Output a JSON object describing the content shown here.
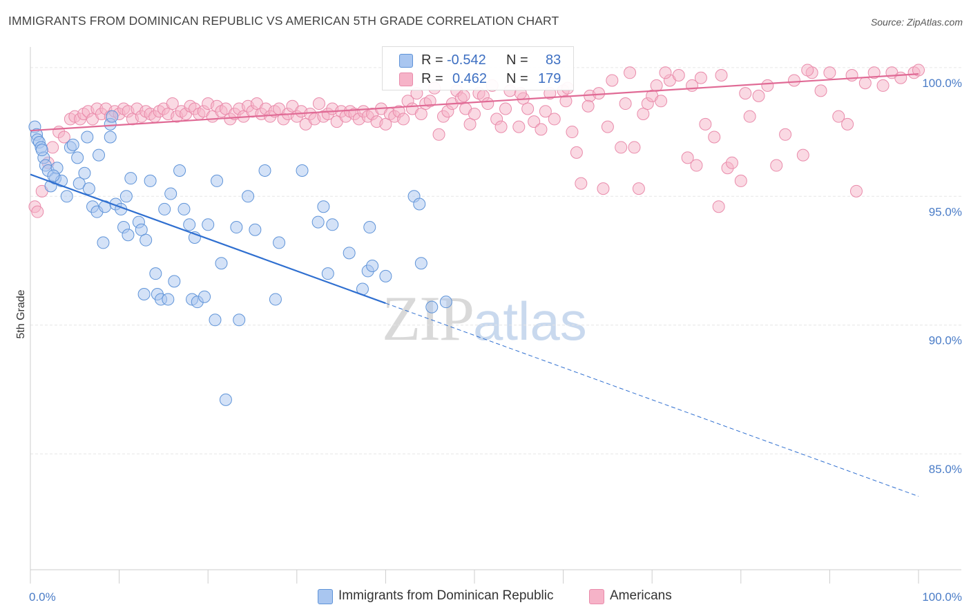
{
  "header": {
    "title": "IMMIGRANTS FROM DOMINICAN REPUBLIC VS AMERICAN 5TH GRADE CORRELATION CHART",
    "source": "Source: ZipAtlas.com"
  },
  "watermark": {
    "zip": "ZIP",
    "atlas": "atlas"
  },
  "legend": {
    "r_label": "R =",
    "n_label": "N =",
    "rows": [
      {
        "r": "-0.542",
        "n": "83",
        "color": "#a9c6f0"
      },
      {
        "r": "0.462",
        "n": "179",
        "color": "#f6b3c8"
      }
    ]
  },
  "bottom_legend": {
    "items": [
      {
        "label": "Immigrants from Dominican Republic",
        "color": "#a9c6f0"
      },
      {
        "label": "Americans",
        "color": "#f6b3c8"
      }
    ]
  },
  "colors": {
    "blue_fill": "#a9c6f0",
    "blue_stroke": "#5e93d8",
    "blue_line": "#2f6fd0",
    "pink_fill": "#f6b3c8",
    "pink_stroke": "#e98aaa",
    "pink_line": "#e06a95",
    "grid": "#e6e6e6",
    "tick_text": "#4a7cc7"
  },
  "chart_data": {
    "type": "scatter",
    "ylabel": "5th Grade",
    "xlabel": "",
    "xlim": [
      0,
      100
    ],
    "ylim": [
      80.5,
      100.8
    ],
    "x_tick_labels": [
      {
        "value": 0,
        "label": "0.0%"
      },
      {
        "value": 100,
        "label": "100.0%"
      }
    ],
    "y_tick_labels": [
      {
        "value": 100,
        "label": "100.0%"
      },
      {
        "value": 95,
        "label": "95.0%"
      },
      {
        "value": 90,
        "label": "90.0%"
      },
      {
        "value": 85,
        "label": "85.0%"
      }
    ],
    "grid": true,
    "legend_placement": "top-center",
    "series": [
      {
        "name": "Immigrants from Dominican Republic",
        "r": -0.542,
        "n": 83,
        "trend": {
          "x0": 0,
          "y0": 95.85,
          "x1": 40,
          "y1": 90.85,
          "dashed_to_x": 100,
          "dashed_to_y": 83.35
        },
        "points": [
          [
            0.5,
            97.7
          ],
          [
            0.7,
            97.4
          ],
          [
            0.8,
            97.2
          ],
          [
            1.0,
            97.1
          ],
          [
            1.2,
            96.9
          ],
          [
            1.5,
            96.5
          ],
          [
            1.7,
            96.2
          ],
          [
            2.0,
            96.0
          ],
          [
            2.3,
            95.4
          ],
          [
            2.8,
            95.7
          ],
          [
            3.5,
            95.6
          ],
          [
            3.0,
            96.1
          ],
          [
            4.1,
            95.0
          ],
          [
            4.5,
            96.9
          ],
          [
            5.3,
            96.5
          ],
          [
            5.5,
            95.5
          ],
          [
            6.4,
            97.3
          ],
          [
            6.6,
            95.3
          ],
          [
            7.0,
            94.6
          ],
          [
            7.5,
            94.4
          ],
          [
            7.7,
            96.6
          ],
          [
            8.2,
            93.2
          ],
          [
            8.4,
            94.6
          ],
          [
            9.0,
            97.3
          ],
          [
            9.0,
            97.8
          ],
          [
            9.2,
            98.1
          ],
          [
            9.6,
            94.7
          ],
          [
            10.2,
            94.5
          ],
          [
            10.5,
            93.8
          ],
          [
            10.8,
            95.0
          ],
          [
            11.0,
            93.5
          ],
          [
            11.3,
            95.7
          ],
          [
            12.2,
            94.0
          ],
          [
            12.5,
            93.7
          ],
          [
            13.0,
            93.3
          ],
          [
            13.5,
            95.6
          ],
          [
            14.1,
            92.0
          ],
          [
            14.3,
            91.2
          ],
          [
            14.7,
            91.0
          ],
          [
            15.1,
            94.5
          ],
          [
            15.5,
            91.0
          ],
          [
            15.8,
            95.1
          ],
          [
            16.2,
            91.7
          ],
          [
            16.8,
            96.0
          ],
          [
            17.3,
            94.5
          ],
          [
            17.9,
            93.9
          ],
          [
            18.2,
            91.0
          ],
          [
            18.5,
            93.4
          ],
          [
            18.8,
            90.9
          ],
          [
            20.0,
            93.9
          ],
          [
            20.8,
            90.2
          ],
          [
            21.5,
            92.4
          ],
          [
            22.0,
            87.1
          ],
          [
            23.2,
            93.8
          ],
          [
            23.5,
            90.2
          ],
          [
            24.5,
            95.0
          ],
          [
            25.3,
            93.7
          ],
          [
            26.4,
            96.0
          ],
          [
            27.6,
            91.0
          ],
          [
            28.0,
            93.2
          ],
          [
            30.6,
            96.0
          ],
          [
            32.4,
            94.0
          ],
          [
            33.0,
            94.6
          ],
          [
            33.5,
            92.0
          ],
          [
            34.0,
            93.9
          ],
          [
            35.9,
            92.8
          ],
          [
            37.4,
            91.4
          ],
          [
            38.0,
            92.1
          ],
          [
            38.2,
            93.8
          ],
          [
            38.5,
            92.3
          ],
          [
            40.0,
            91.9
          ],
          [
            43.2,
            95.0
          ],
          [
            43.8,
            94.7
          ],
          [
            44.0,
            92.4
          ],
          [
            45.2,
            90.7
          ],
          [
            46.8,
            90.9
          ],
          [
            2.6,
            95.8
          ],
          [
            1.3,
            96.8
          ],
          [
            12.8,
            91.2
          ],
          [
            19.6,
            91.1
          ],
          [
            6.1,
            95.9
          ],
          [
            21.0,
            95.6
          ],
          [
            4.8,
            97.0
          ]
        ]
      },
      {
        "name": "Americans",
        "r": 0.462,
        "n": 179,
        "trend": {
          "x0": 0,
          "y0": 97.55,
          "x1": 100,
          "y1": 99.75
        },
        "points": [
          [
            0.5,
            94.6
          ],
          [
            0.8,
            94.4
          ],
          [
            1.3,
            95.2
          ],
          [
            2.0,
            96.3
          ],
          [
            2.5,
            96.9
          ],
          [
            3.2,
            97.5
          ],
          [
            3.8,
            97.3
          ],
          [
            4.5,
            98.0
          ],
          [
            5.0,
            98.1
          ],
          [
            5.6,
            98.0
          ],
          [
            6.0,
            98.2
          ],
          [
            6.5,
            98.3
          ],
          [
            7.0,
            98.0
          ],
          [
            7.5,
            98.4
          ],
          [
            8.0,
            98.2
          ],
          [
            8.5,
            98.4
          ],
          [
            9.0,
            98.1
          ],
          [
            9.5,
            98.3
          ],
          [
            10.0,
            98.2
          ],
          [
            10.5,
            98.4
          ],
          [
            11.0,
            98.3
          ],
          [
            11.5,
            98.0
          ],
          [
            12.0,
            98.4
          ],
          [
            12.5,
            98.1
          ],
          [
            13.0,
            98.3
          ],
          [
            13.5,
            98.2
          ],
          [
            14.0,
            98.1
          ],
          [
            14.5,
            98.3
          ],
          [
            15.0,
            98.4
          ],
          [
            15.5,
            98.2
          ],
          [
            16.0,
            98.6
          ],
          [
            16.5,
            98.1
          ],
          [
            17.0,
            98.3
          ],
          [
            17.5,
            98.2
          ],
          [
            18.0,
            98.5
          ],
          [
            18.5,
            98.4
          ],
          [
            19.0,
            98.2
          ],
          [
            19.5,
            98.3
          ],
          [
            20.0,
            98.6
          ],
          [
            20.5,
            98.1
          ],
          [
            21.0,
            98.5
          ],
          [
            21.5,
            98.3
          ],
          [
            22.0,
            98.4
          ],
          [
            22.5,
            98.0
          ],
          [
            23.0,
            98.2
          ],
          [
            23.5,
            98.4
          ],
          [
            24.0,
            98.1
          ],
          [
            24.5,
            98.5
          ],
          [
            25.0,
            98.3
          ],
          [
            25.5,
            98.6
          ],
          [
            26.0,
            98.2
          ],
          [
            26.5,
            98.4
          ],
          [
            27.0,
            98.1
          ],
          [
            27.5,
            98.3
          ],
          [
            28.0,
            98.4
          ],
          [
            28.5,
            98.0
          ],
          [
            29.0,
            98.2
          ],
          [
            29.5,
            98.5
          ],
          [
            30.0,
            98.1
          ],
          [
            30.5,
            98.3
          ],
          [
            31.0,
            97.8
          ],
          [
            31.5,
            98.2
          ],
          [
            32.0,
            98.0
          ],
          [
            32.5,
            98.6
          ],
          [
            33.0,
            98.1
          ],
          [
            33.5,
            98.2
          ],
          [
            34.0,
            98.4
          ],
          [
            34.5,
            97.9
          ],
          [
            35.0,
            98.3
          ],
          [
            35.5,
            98.1
          ],
          [
            36.0,
            98.3
          ],
          [
            36.5,
            98.2
          ],
          [
            37.0,
            98.0
          ],
          [
            37.5,
            98.3
          ],
          [
            38.0,
            98.1
          ],
          [
            38.5,
            98.2
          ],
          [
            39.0,
            97.9
          ],
          [
            39.5,
            98.4
          ],
          [
            40.0,
            97.8
          ],
          [
            40.5,
            98.2
          ],
          [
            41.0,
            98.1
          ],
          [
            41.5,
            98.3
          ],
          [
            42.0,
            98.0
          ],
          [
            42.5,
            98.7
          ],
          [
            43.0,
            98.4
          ],
          [
            43.5,
            99.0
          ],
          [
            44.0,
            98.2
          ],
          [
            44.5,
            98.6
          ],
          [
            45.0,
            98.7
          ],
          [
            45.5,
            99.2
          ],
          [
            46.0,
            97.4
          ],
          [
            46.5,
            98.1
          ],
          [
            47.0,
            98.3
          ],
          [
            47.5,
            98.6
          ],
          [
            48.0,
            99.1
          ],
          [
            48.5,
            98.8
          ],
          [
            49.0,
            98.4
          ],
          [
            49.5,
            97.8
          ],
          [
            50.0,
            98.2
          ],
          [
            50.5,
            99.0
          ],
          [
            51.0,
            98.9
          ],
          [
            51.5,
            98.6
          ],
          [
            52.0,
            99.3
          ],
          [
            52.5,
            98.0
          ],
          [
            53.0,
            97.7
          ],
          [
            53.5,
            98.4
          ],
          [
            54.0,
            99.1
          ],
          [
            55.0,
            97.7
          ],
          [
            55.5,
            98.8
          ],
          [
            56.0,
            98.4
          ],
          [
            56.7,
            97.9
          ],
          [
            57.5,
            97.6
          ],
          [
            58.0,
            98.3
          ],
          [
            58.5,
            99.0
          ],
          [
            59.0,
            98.0
          ],
          [
            60.0,
            99.1
          ],
          [
            60.5,
            99.2
          ],
          [
            61.0,
            97.5
          ],
          [
            61.5,
            96.7
          ],
          [
            62.0,
            95.5
          ],
          [
            63.0,
            98.9
          ],
          [
            64.0,
            99.0
          ],
          [
            64.5,
            95.3
          ],
          [
            65.0,
            97.7
          ],
          [
            65.5,
            99.5
          ],
          [
            66.5,
            96.9
          ],
          [
            67.0,
            98.6
          ],
          [
            68.0,
            96.9
          ],
          [
            68.5,
            95.3
          ],
          [
            69.0,
            98.2
          ],
          [
            69.5,
            98.6
          ],
          [
            70.0,
            98.9
          ],
          [
            70.5,
            99.3
          ],
          [
            71.0,
            98.7
          ],
          [
            72.0,
            99.5
          ],
          [
            73.0,
            99.7
          ],
          [
            74.0,
            96.5
          ],
          [
            74.5,
            99.3
          ],
          [
            75.0,
            96.2
          ],
          [
            76.0,
            97.8
          ],
          [
            77.0,
            97.3
          ],
          [
            77.5,
            94.6
          ],
          [
            78.5,
            96.1
          ],
          [
            79.0,
            96.3
          ],
          [
            80.0,
            95.6
          ],
          [
            80.5,
            99.0
          ],
          [
            81.0,
            98.1
          ],
          [
            82.0,
            98.9
          ],
          [
            83.0,
            99.3
          ],
          [
            84.0,
            96.2
          ],
          [
            85.0,
            97.4
          ],
          [
            86.0,
            99.5
          ],
          [
            87.0,
            96.6
          ],
          [
            88.0,
            99.8
          ],
          [
            89.0,
            99.1
          ],
          [
            90.0,
            99.8
          ],
          [
            91.0,
            98.1
          ],
          [
            92.0,
            97.8
          ],
          [
            93.0,
            95.2
          ],
          [
            94.0,
            99.4
          ],
          [
            95.0,
            99.8
          ],
          [
            96.0,
            99.3
          ],
          [
            97.0,
            99.8
          ],
          [
            98.0,
            99.6
          ],
          [
            99.5,
            99.8
          ],
          [
            100.0,
            99.9
          ],
          [
            67.5,
            99.8
          ],
          [
            55.2,
            99.0
          ],
          [
            62.8,
            98.5
          ],
          [
            71.5,
            99.8
          ],
          [
            75.5,
            99.6
          ],
          [
            87.5,
            99.9
          ],
          [
            92.5,
            99.7
          ],
          [
            48.8,
            98.9
          ],
          [
            60.3,
            98.7
          ],
          [
            77.8,
            99.7
          ]
        ]
      }
    ]
  }
}
